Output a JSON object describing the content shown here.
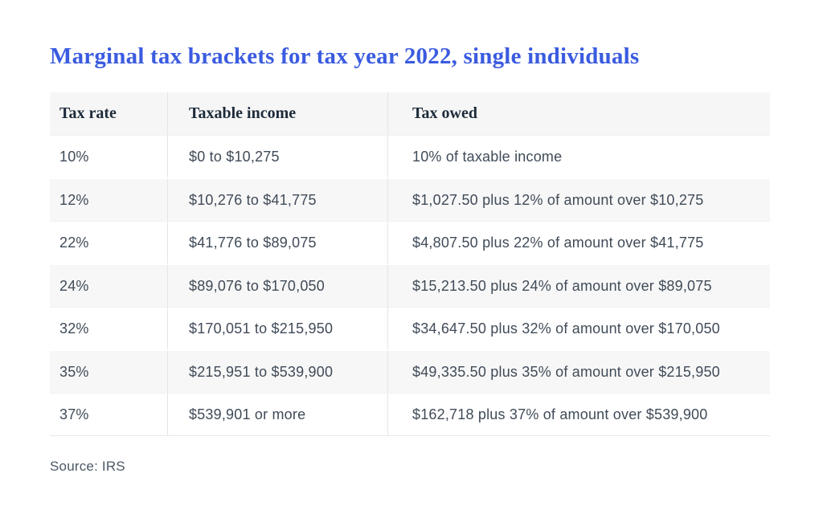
{
  "chart_data": {
    "type": "table",
    "title": "Marginal tax brackets for tax year 2022, single individuals",
    "columns": [
      "Tax rate",
      "Taxable income",
      "Tax owed"
    ],
    "rows": [
      [
        "10%",
        "$0 to $10,275",
        "10% of taxable income"
      ],
      [
        "12%",
        "$10,276 to $41,775",
        "$1,027.50 plus 12% of amount over $10,275"
      ],
      [
        "22%",
        "$41,776 to $89,075",
        "$4,807.50 plus 22% of amount over $41,775"
      ],
      [
        "24%",
        "$89,076 to $170,050",
        "$15,213.50 plus 24% of amount over $89,075"
      ],
      [
        "32%",
        "$170,051 to $215,950",
        "$34,647.50 plus 32% of amount over $170,050"
      ],
      [
        "35%",
        "$215,951 to $539,900",
        "$49,335.50 plus 35% of amount over $215,950"
      ],
      [
        "37%",
        "$539,901 or more",
        "$162,718 plus 37% of amount over $539,900"
      ]
    ],
    "source": "Source: IRS",
    "layout": {
      "legend": "none",
      "grid": "row-stripes",
      "stripe_style": "alternating white and light gray rows, vertical column dividers"
    }
  },
  "colors": {
    "title_blue": "#3a5be0",
    "header_text": "#1d2b3a",
    "body_text": "#404b58",
    "header_bg": "#f6f6f6",
    "row_alt_bg": "#f7f7f7",
    "divider": "#e5e5e5",
    "source_text": "#4d5866",
    "page_bg": "#ffffff"
  }
}
